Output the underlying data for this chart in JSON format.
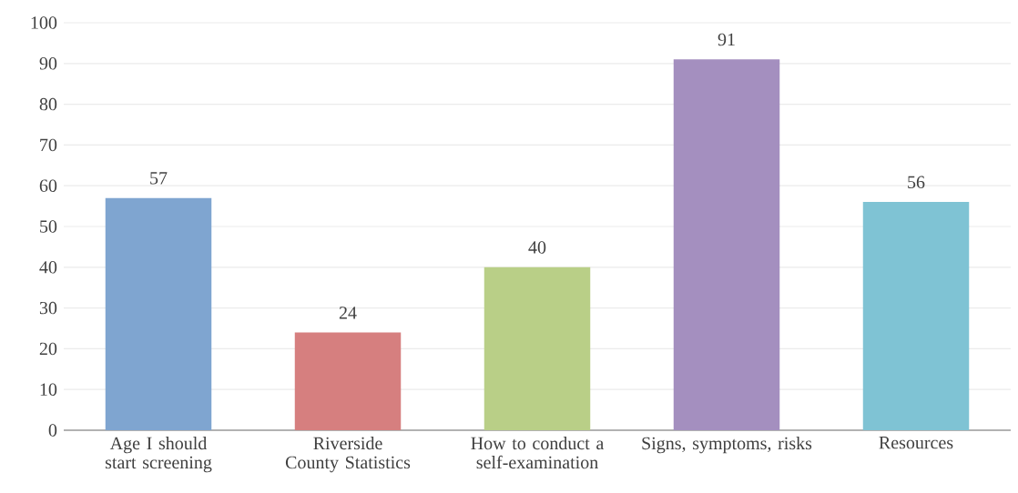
{
  "chart_data": {
    "type": "bar",
    "categories": [
      "Age I should start screening",
      "Riverside County Statistics",
      "How to conduct a self-examination",
      "Signs, symptoms, risks",
      "Resources"
    ],
    "values": [
      57,
      24,
      40,
      91,
      56
    ],
    "colors": [
      "#7fa5d0",
      "#d67f7f",
      "#b9cf87",
      "#a48fbf",
      "#7fc3d4"
    ],
    "ylim": [
      0,
      100
    ],
    "yticks": [
      0,
      10,
      20,
      30,
      40,
      50,
      60,
      70,
      80,
      90,
      100
    ],
    "grid": "y",
    "data_labels": true
  }
}
